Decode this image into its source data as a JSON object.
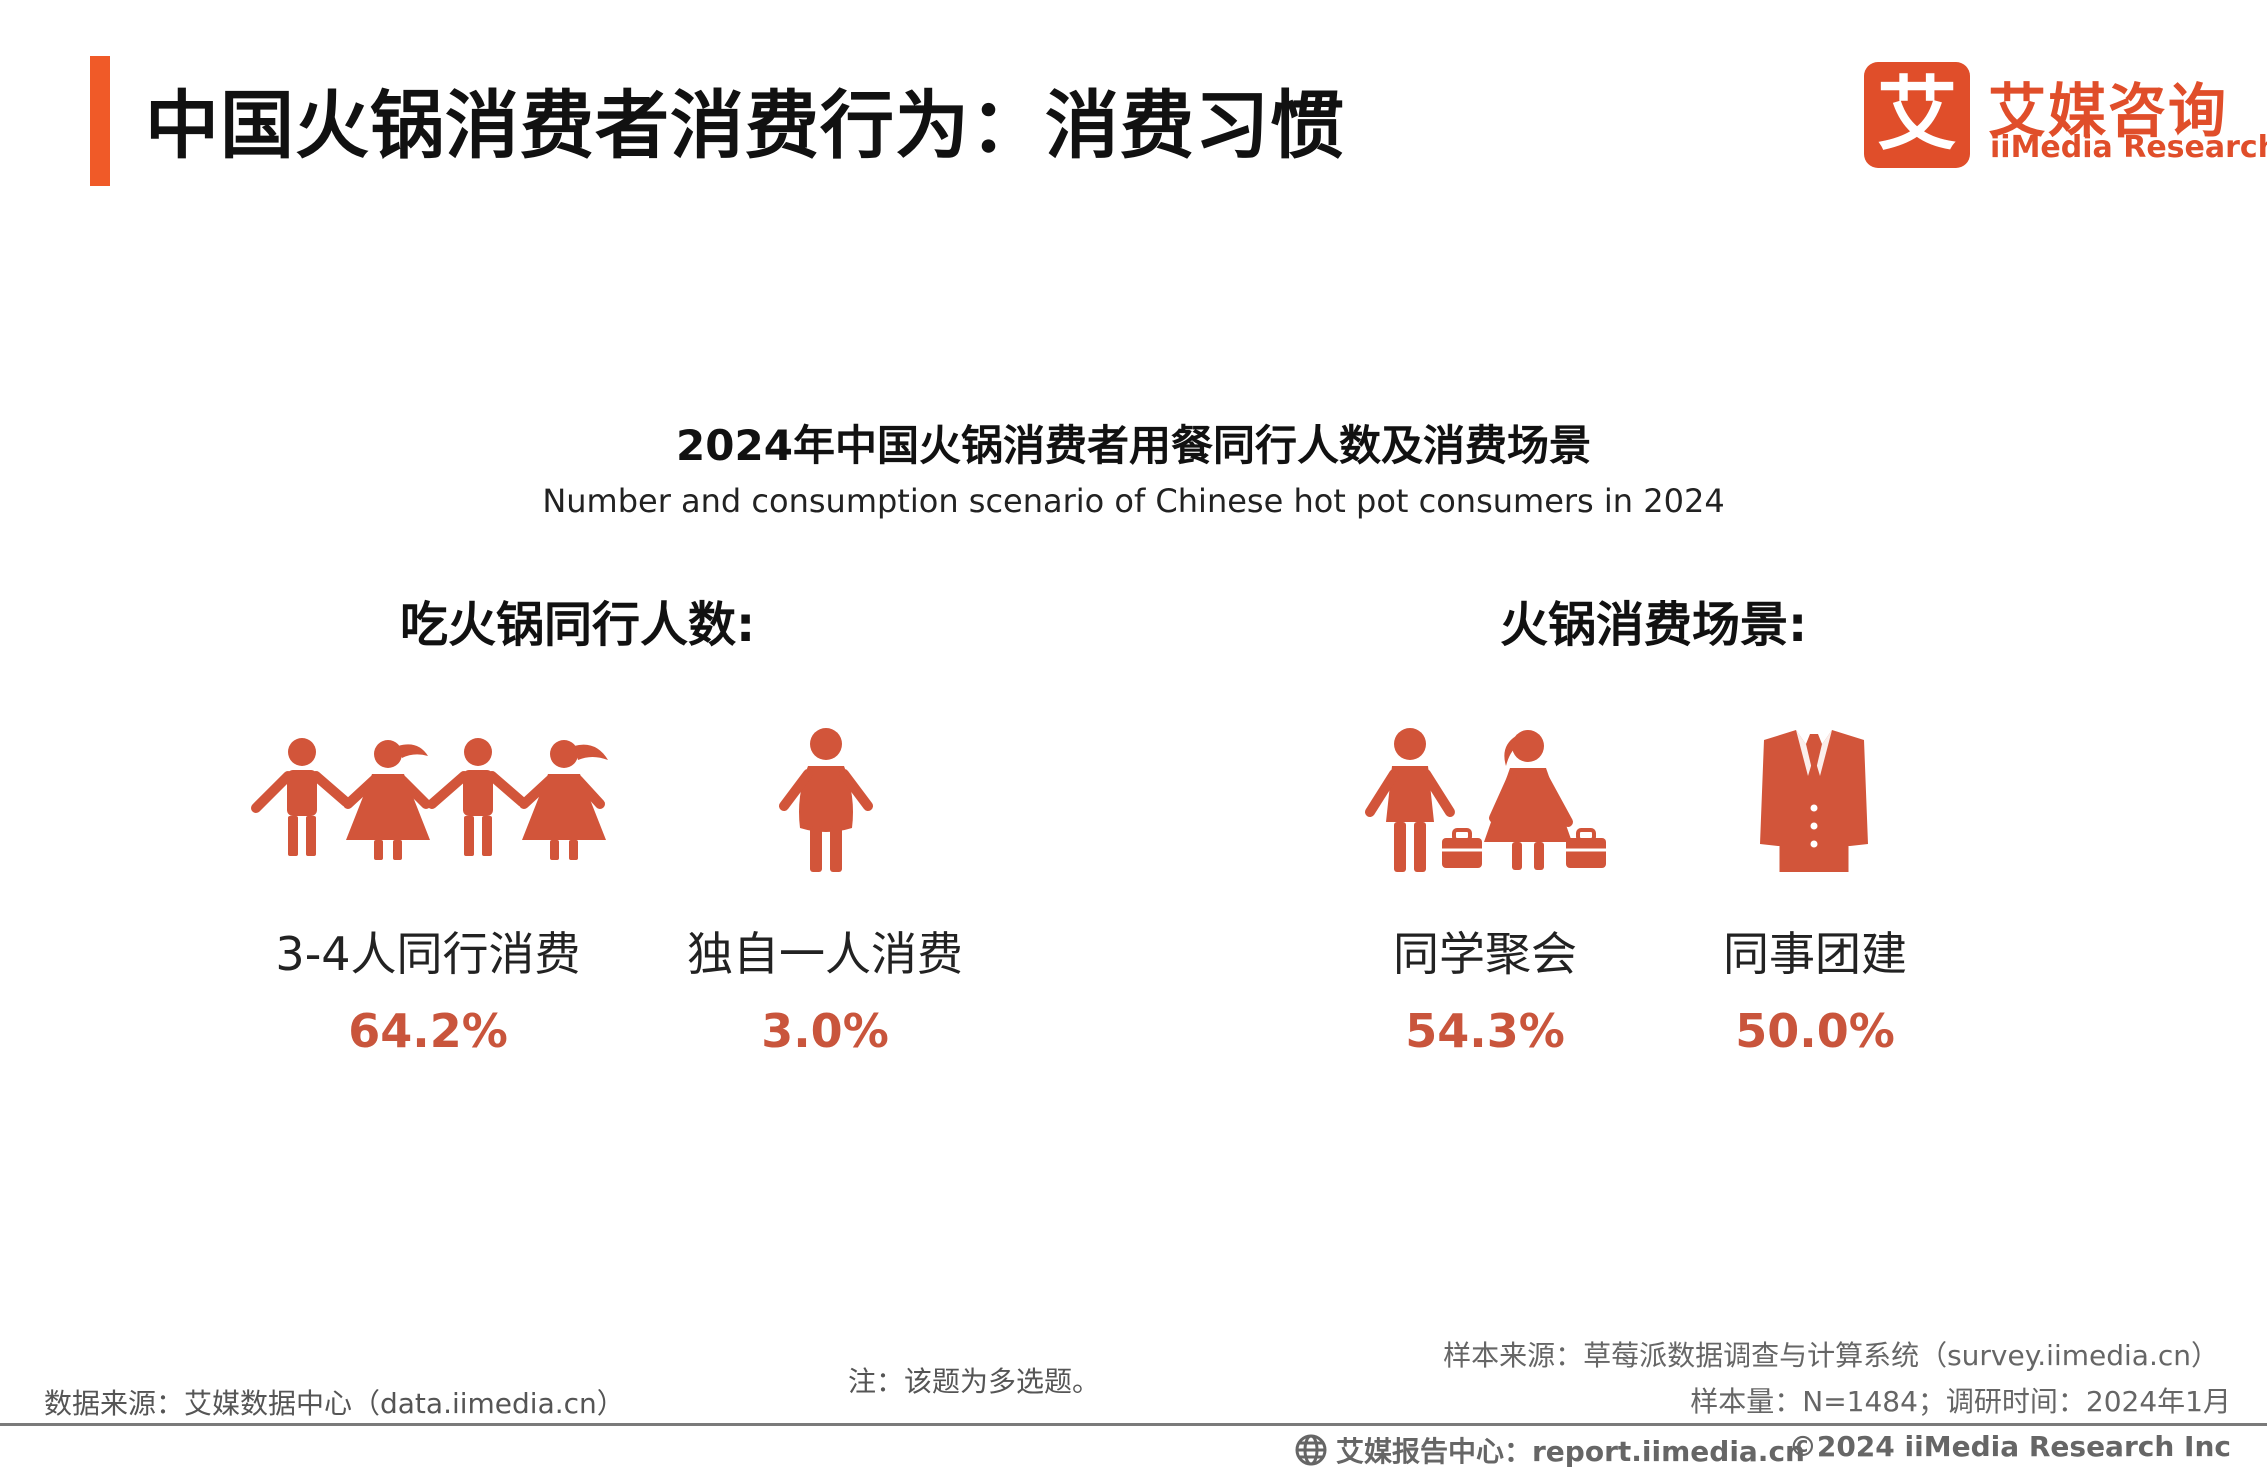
{
  "header": {
    "title": "中国火锅消费者消费行为：消费习惯",
    "accent_color": "#f05a28"
  },
  "logo": {
    "glyph": "艾",
    "name_cn": "艾媒咨询",
    "name_en": "iiMedia Research",
    "color": "#e04e2a"
  },
  "chart": {
    "title": "2024年中国火锅消费者用餐同行人数及消费场景",
    "subtitle": "Number and consumption scenario of Chinese hot pot consumers in 2024",
    "icon_color": "#d2553a",
    "value_color": "#c9553c"
  },
  "sections": {
    "left": {
      "title": "吃火锅同行人数:",
      "items": [
        {
          "icon": "group-of-four-people-icon",
          "label": "3-4人同行消费",
          "value": "64.2%"
        },
        {
          "icon": "single-person-icon",
          "label": "独自一人消费",
          "value": "3.0%"
        }
      ]
    },
    "right": {
      "title": "火锅消费场景:",
      "items": [
        {
          "icon": "students-with-briefcases-icon",
          "label": "同学聚会",
          "value": "54.3%"
        },
        {
          "icon": "suit-jacket-icon",
          "label": "同事团建",
          "value": "50.0%"
        }
      ]
    }
  },
  "footer": {
    "data_source": "数据来源：艾媒数据中心（data.iimedia.cn）",
    "note": "注：该题为多选题。",
    "sample_source": "样本来源：草莓派数据调查与计算系统（survey.iimedia.cn）",
    "sample_size": "样本量：N=1484；调研时间：2024年1月",
    "report_center": "艾媒报告中心：report.iimedia.cn",
    "copyright": "©2024  iiMedia Research  Inc"
  }
}
